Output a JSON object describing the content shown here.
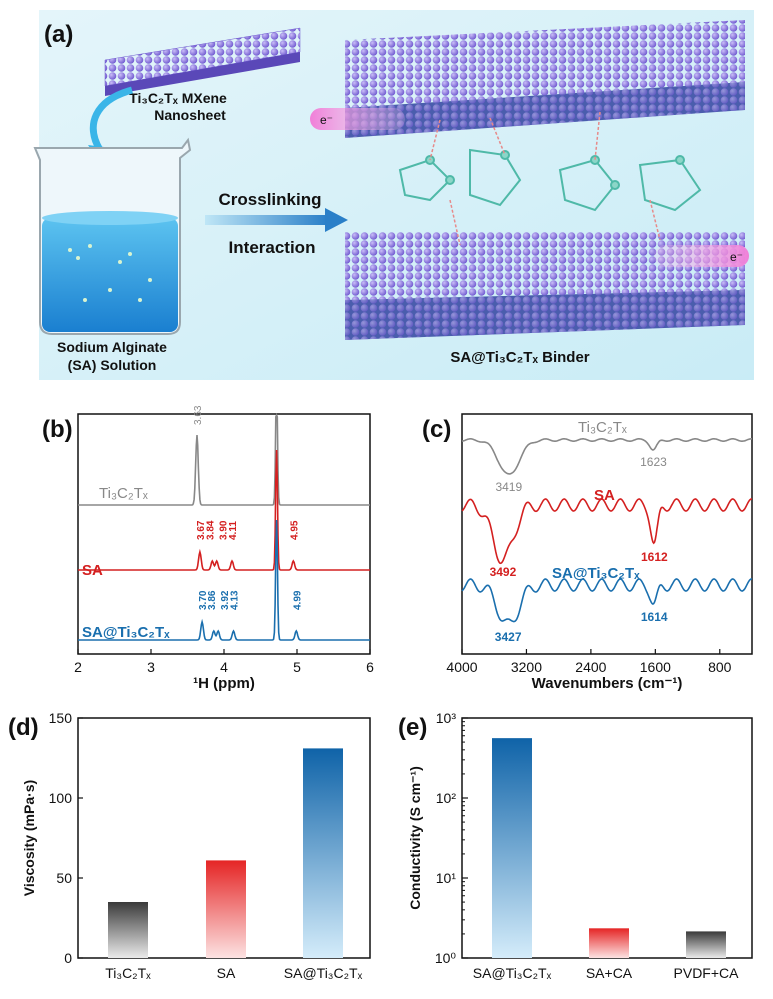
{
  "panel_a": {
    "panel_label": "(a)",
    "nanosheet_label_1": "Ti₃C₂Tₓ MXene",
    "nanosheet_label_2": "Nanosheet",
    "beaker_label_1": "Sodium Alginate",
    "beaker_label_2": "(SA) Solution",
    "arrow_label_1": "Crosslinking",
    "arrow_label_2": "Interaction",
    "binder_label": "SA@Ti₃C₂Tₓ  Binder",
    "electron_label": "e⁻",
    "colors": {
      "background": "#d9f1f8",
      "sheet_atoms": "#8f7be3",
      "solution": "#2a9fe0"
    }
  },
  "chart_data": [
    {
      "panel": "(b)",
      "type": "line",
      "xlabel": "¹H (ppm)",
      "ylabel": "",
      "xlim": [
        2,
        6
      ],
      "xticks": [
        "2",
        "3",
        "4",
        "5",
        "6"
      ],
      "series": [
        {
          "name": "Ti₃C₂Tₓ",
          "color": "#888888",
          "peaks": [
            {
              "x": 3.63,
              "label": "3.63"
            }
          ]
        },
        {
          "name": "SA",
          "color": "#d42020",
          "peaks": [
            {
              "x": 3.67,
              "label": "3.67"
            },
            {
              "x": 3.84,
              "label": "3.84"
            },
            {
              "x": 3.9,
              "label": "3.90"
            },
            {
              "x": 4.11,
              "label": "4.11"
            },
            {
              "x": 4.95,
              "label": "4.95"
            }
          ]
        },
        {
          "name": "SA@Ti₃C₂Tₓ",
          "color": "#1a6fae",
          "peaks": [
            {
              "x": 3.7,
              "label": "3.70"
            },
            {
              "x": 3.86,
              "label": "3.86"
            },
            {
              "x": 3.92,
              "label": "3.92"
            },
            {
              "x": 4.13,
              "label": "4.13"
            },
            {
              "x": 4.99,
              "label": "4.99"
            }
          ]
        }
      ]
    },
    {
      "panel": "(c)",
      "type": "line",
      "xlabel": "Wavenumbers (cm⁻¹)",
      "ylabel": "",
      "xlim": [
        4000,
        400
      ],
      "xticks": [
        "4000",
        "3200",
        "2400",
        "1600",
        "800"
      ],
      "series": [
        {
          "name": "Ti₃C₂Tₓ",
          "color": "#888888",
          "peaks": [
            {
              "x": 3419,
              "label": "3419"
            },
            {
              "x": 1623,
              "label": "1623"
            }
          ]
        },
        {
          "name": "SA",
          "color": "#d42020",
          "peaks": [
            {
              "x": 3492,
              "label": "3492"
            },
            {
              "x": 1612,
              "label": "1612"
            }
          ]
        },
        {
          "name": "SA@Ti₃C₂Tₓ",
          "color": "#1a6fae",
          "peaks": [
            {
              "x": 3427,
              "label": "3427"
            },
            {
              "x": 1614,
              "label": "1614"
            }
          ]
        }
      ]
    },
    {
      "panel": "(d)",
      "type": "bar",
      "ylabel": "Viscosity (mPa·s)",
      "ylim": [
        0,
        150
      ],
      "yticks": [
        "0",
        "50",
        "100",
        "150"
      ],
      "categories": [
        "Ti₃C₂Tₓ",
        "SA",
        "SA@Ti₃C₂Tₓ"
      ],
      "values": [
        35,
        61,
        131
      ],
      "colors": [
        "#555555",
        "#e02a2a",
        "#1a6fae"
      ]
    },
    {
      "panel": "(e)",
      "type": "bar",
      "ylabel": "Conductivity (S cm⁻¹)",
      "yscale": "log",
      "ylim": [
        1,
        1000
      ],
      "yticks": [
        "10⁰",
        "10¹",
        "10²",
        "10³"
      ],
      "categories": [
        "SA@Ti₃C₂Tₓ",
        "SA+CA",
        "PVDF+CA"
      ],
      "values": [
        560,
        2.35,
        2.15
      ],
      "colors": [
        "#1a6fae",
        "#e02a2a",
        "#444444"
      ]
    }
  ]
}
